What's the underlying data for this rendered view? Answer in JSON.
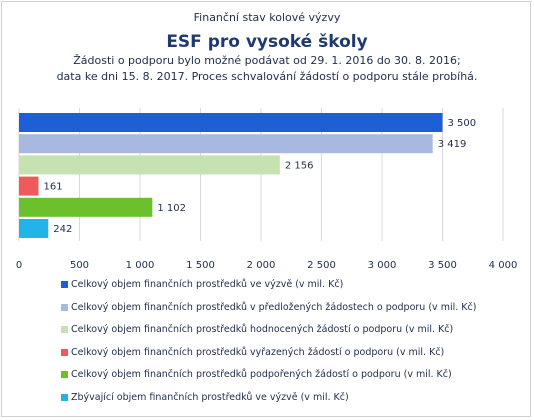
{
  "header": {
    "supertitle": "Finanční stav kolové výzvy",
    "title": "ESF pro vysoké školy",
    "subtitle_line1": "Žádosti o podporu bylo možné  podávat od 29. 1. 2016 do 30. 8. 2016;",
    "subtitle_line2": "data ke dni 15. 8. 2017. Proces schvalování žádostí o podporu stále probíhá."
  },
  "chart_data": {
    "type": "bar",
    "orientation": "horizontal",
    "xlim": [
      0,
      4000
    ],
    "x_ticks": [
      0,
      500,
      1000,
      1500,
      2000,
      2500,
      3000,
      3500,
      4000
    ],
    "x_tick_labels": [
      "0",
      "500",
      "1 000",
      "1 500",
      "2 000",
      "2 500",
      "3 000",
      "3 500",
      "4 000"
    ],
    "grid": true,
    "legend_position": "bottom",
    "series": [
      {
        "name": "Celkový objem finančních prostředků ve výzvě (v mil. Kč)",
        "value": 3500,
        "label": "3 500",
        "color": "#1f5fd6"
      },
      {
        "name": "Celkový objem finančních prostředků v předložených žádostech o podporu (v mil. Kč)",
        "value": 3419,
        "label": "3 419",
        "color": "#a9b8e0"
      },
      {
        "name": "Celkový objem finančních prostředků hodnocených žádostí o podporu (v mil. Kč)",
        "value": 2156,
        "label": "2 156",
        "color": "#c6e2b0"
      },
      {
        "name": "Celkový objem finančních prostředků vyřazených žádostí o podporu (v mil. Kč)",
        "value": 161,
        "label": "161",
        "color": "#ef5b5b"
      },
      {
        "name": "Celkový objem finančních prostředků podpořených žádostí o podporu (v mil. Kč)",
        "value": 1102,
        "label": "1 102",
        "color": "#6cc02b"
      },
      {
        "name": "Zbývající objem finančních prostředků ve výzvě (v mil. Kč)",
        "value": 242,
        "label": "242",
        "color": "#22b4e8"
      }
    ]
  }
}
